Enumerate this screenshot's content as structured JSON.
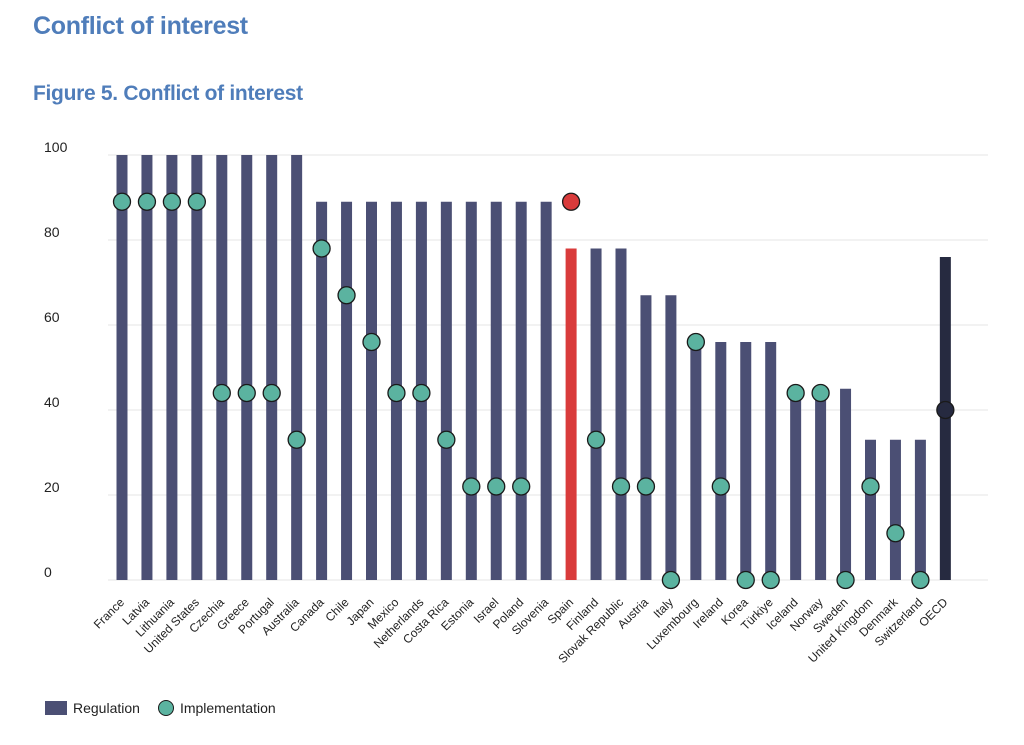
{
  "page": {
    "heading": "Conflict of interest",
    "figure_title": "Figure 5. Conflict of interest"
  },
  "colors": {
    "regulation": "#4b4f74",
    "implementation": "#5bb3a0",
    "highlight_spain": "#d93b3b",
    "oecd": "#262a40",
    "title": "#4f7dba"
  },
  "chart_data": {
    "type": "bar",
    "title": "Figure 5. Conflict of interest",
    "xlabel": "",
    "ylabel": "",
    "ylim": [
      0,
      100
    ],
    "yticks": [
      0,
      20,
      40,
      60,
      80,
      100
    ],
    "grid": true,
    "legend_position": "bottom-left",
    "categories": [
      "France",
      "Latvia",
      "Lithuania",
      "United States",
      "Czechia",
      "Greece",
      "Portugal",
      "Australia",
      "Canada",
      "Chile",
      "Japan",
      "Mexico",
      "Netherlands",
      "Costa Rica",
      "Estonia",
      "Israel",
      "Poland",
      "Slovenia",
      "Spain",
      "Finland",
      "Slovak Republic",
      "Austria",
      "Italy",
      "Luxembourg",
      "Ireland",
      "Korea",
      "Türkiye",
      "Iceland",
      "Norway",
      "Sweden",
      "United Kingdom",
      "Denmark",
      "Switzerland",
      "OECD"
    ],
    "series": [
      {
        "name": "Regulation",
        "values": [
          100,
          100,
          100,
          100,
          100,
          100,
          100,
          100,
          89,
          89,
          89,
          89,
          89,
          89,
          89,
          89,
          89,
          89,
          78,
          78,
          78,
          67,
          67,
          56,
          56,
          56,
          56,
          45,
          45,
          45,
          33,
          33,
          33,
          76
        ]
      },
      {
        "name": "Implementation",
        "values": [
          89,
          89,
          89,
          89,
          44,
          44,
          44,
          33,
          78,
          67,
          56,
          44,
          44,
          33,
          22,
          22,
          22,
          null,
          89,
          33,
          22,
          22,
          0,
          56,
          22,
          0,
          0,
          44,
          44,
          0,
          22,
          11,
          0,
          40
        ]
      }
    ],
    "highlight": {
      "category": "Spain"
    },
    "average": {
      "category": "OECD"
    }
  },
  "legend": {
    "regulation_label": "Regulation",
    "implementation_label": "Implementation"
  }
}
